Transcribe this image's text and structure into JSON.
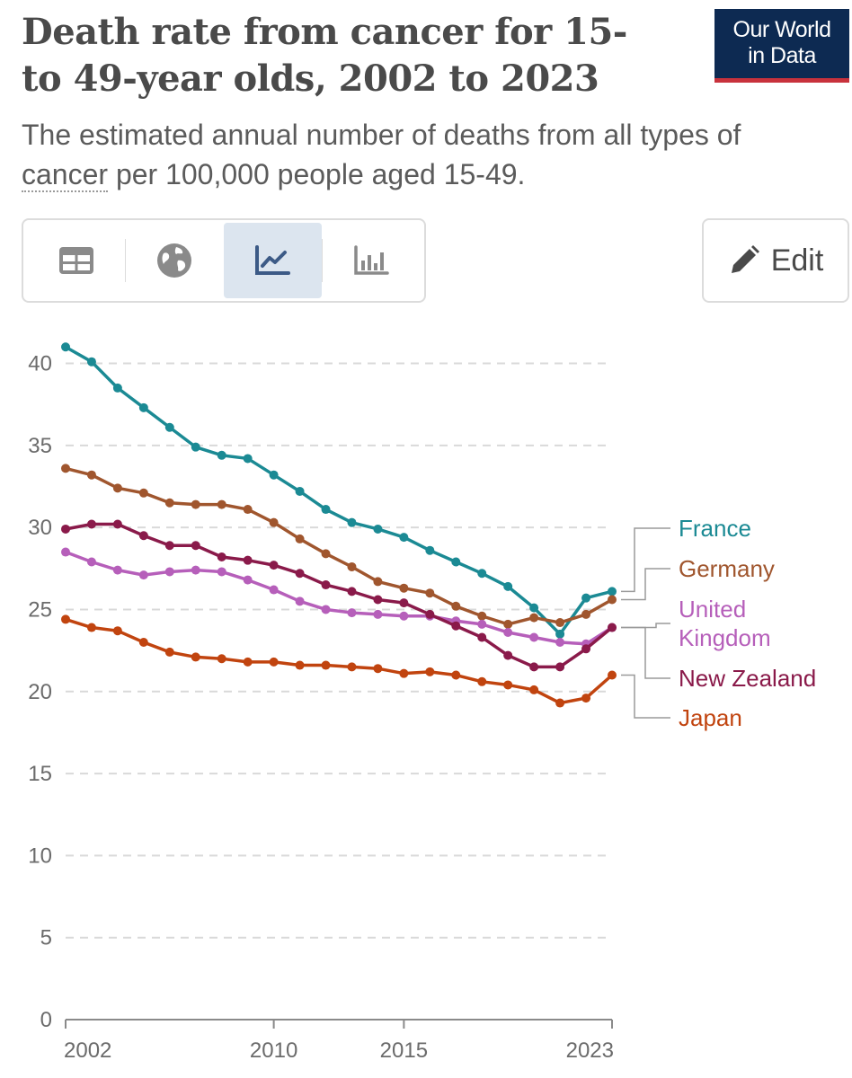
{
  "header": {
    "title": "Death rate from cancer for 15- to 49-year olds, 2002 to 2023",
    "subtitle_pre": "The estimated annual number of deaths from all types of ",
    "subtitle_link": "cancer",
    "subtitle_post": " per 100,000 people aged 15-49.",
    "logo_line1": "Our World",
    "logo_line2": "in Data",
    "logo_color": "#0d2a52",
    "logo_accent": "#c8323c"
  },
  "toolbar": {
    "tabs": [
      {
        "icon": "table-icon",
        "active": false
      },
      {
        "icon": "globe-icon",
        "active": false
      },
      {
        "icon": "line-chart-icon",
        "active": true
      },
      {
        "icon": "bar-chart-icon",
        "active": false
      }
    ],
    "edit_label": "Edit",
    "edit_icon": "pencil-icon"
  },
  "chart_data": {
    "type": "line",
    "title": "Death rate from cancer for 15- to 49-year olds, 2002 to 2023",
    "xlabel": "",
    "ylabel": "",
    "xlim": [
      2002,
      2023
    ],
    "ylim": [
      0,
      42
    ],
    "y_ticks": [
      0,
      5,
      10,
      15,
      20,
      25,
      30,
      35,
      40
    ],
    "x_ticks": [
      2002,
      2010,
      2015,
      2023
    ],
    "grid": "horizontal dashed",
    "legend": "right, labels at line ends",
    "x": [
      2002,
      2003,
      2004,
      2005,
      2006,
      2007,
      2008,
      2009,
      2010,
      2011,
      2012,
      2013,
      2014,
      2015,
      2016,
      2017,
      2018,
      2019,
      2020,
      2021,
      2022,
      2023
    ],
    "series": [
      {
        "name": "France",
        "color": "#1b8a94",
        "values": [
          41.0,
          40.1,
          38.5,
          37.3,
          36.1,
          34.9,
          34.4,
          34.2,
          33.2,
          32.2,
          31.1,
          30.3,
          29.9,
          29.4,
          28.6,
          27.9,
          27.2,
          26.4,
          25.1,
          23.5,
          25.7,
          26.1
        ]
      },
      {
        "name": "Germany",
        "color": "#a0562e",
        "values": [
          33.6,
          33.2,
          32.4,
          32.1,
          31.5,
          31.4,
          31.4,
          31.1,
          30.3,
          29.3,
          28.4,
          27.6,
          26.7,
          26.3,
          26.0,
          25.2,
          24.6,
          24.1,
          24.5,
          24.2,
          24.7,
          25.6
        ]
      },
      {
        "name": "United Kingdom",
        "color": "#b65fba",
        "values": [
          28.5,
          27.9,
          27.4,
          27.1,
          27.3,
          27.4,
          27.3,
          26.8,
          26.2,
          25.5,
          25.0,
          24.8,
          24.7,
          24.6,
          24.6,
          24.3,
          24.1,
          23.6,
          23.3,
          23.0,
          22.9,
          23.9
        ]
      },
      {
        "name": "New Zealand",
        "color": "#8a1a4a",
        "values": [
          29.9,
          30.2,
          30.2,
          29.5,
          28.9,
          28.9,
          28.2,
          28.0,
          27.7,
          27.2,
          26.5,
          26.1,
          25.6,
          25.4,
          24.7,
          24.0,
          23.3,
          22.2,
          21.5,
          21.5,
          22.6,
          23.9
        ]
      },
      {
        "name": "Japan",
        "color": "#c1440f",
        "values": [
          24.4,
          23.9,
          23.7,
          23.0,
          22.4,
          22.1,
          22.0,
          21.8,
          21.8,
          21.6,
          21.6,
          21.5,
          21.4,
          21.1,
          21.2,
          21.0,
          20.6,
          20.4,
          20.1,
          19.3,
          19.6,
          21.0
        ]
      }
    ],
    "legend_labels": [
      {
        "series": "France",
        "lines": [
          "France"
        ]
      },
      {
        "series": "Germany",
        "lines": [
          "Germany"
        ]
      },
      {
        "series": "United Kingdom",
        "lines": [
          "United",
          "Kingdom"
        ]
      },
      {
        "series": "New Zealand",
        "lines": [
          "New Zealand"
        ]
      },
      {
        "series": "Japan",
        "lines": [
          "Japan"
        ]
      }
    ]
  }
}
